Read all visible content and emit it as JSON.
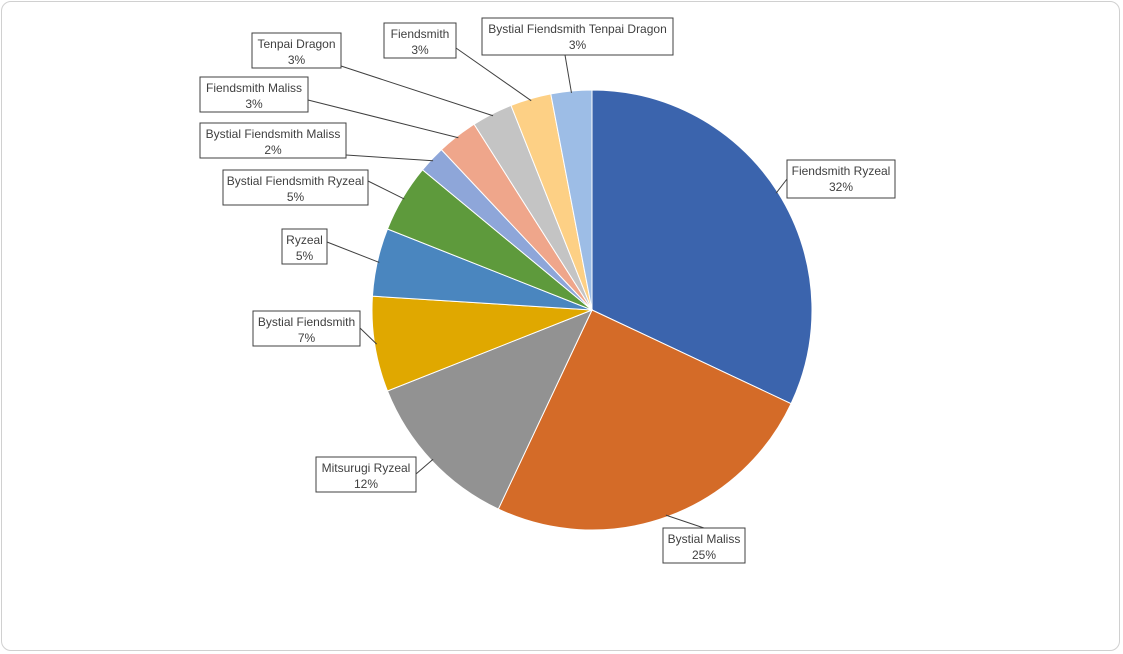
{
  "chart_data": {
    "type": "pie",
    "title": "",
    "categories": [
      "Fiendsmith Ryzeal",
      "Bystial Maliss",
      "Mitsurugi Ryzeal",
      "Bystial Fiendsmith",
      "Ryzeal",
      "Bystial Fiendsmith Ryzeal",
      "Bystial Fiendsmith Maliss",
      "Fiendsmith Maliss",
      "Tenpai Dragon",
      "Fiendsmith",
      "Bystial Fiendsmith Tenpai Dragon"
    ],
    "values": [
      32,
      25,
      12,
      7,
      5,
      5,
      2,
      3,
      3,
      3,
      3
    ],
    "value_labels": [
      "32%",
      "25%",
      "12%",
      "7%",
      "5%",
      "5%",
      "2%",
      "3%",
      "3%",
      "3%",
      "3%"
    ],
    "colors": [
      "#3b64ad",
      "#d46b28",
      "#929292",
      "#e0a800",
      "#4a86bf",
      "#5e9a3c",
      "#8ea6d9",
      "#efa68b",
      "#c4c4c4",
      "#fdd085",
      "#9dbde6"
    ],
    "legend": "none",
    "data_labels": "callouts"
  }
}
